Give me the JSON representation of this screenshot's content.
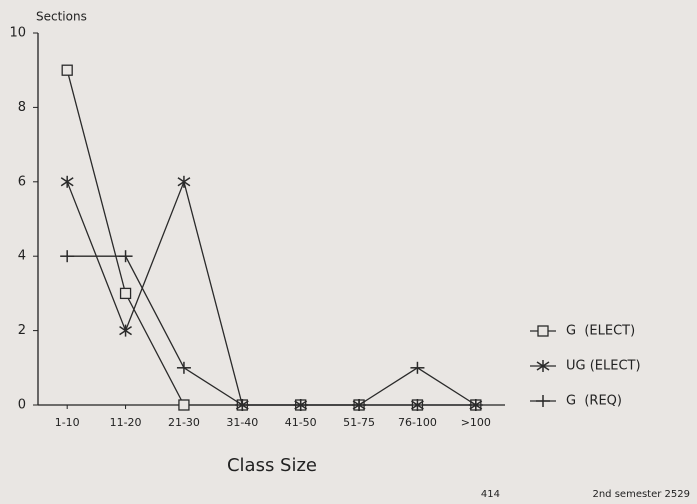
{
  "chart_data": {
    "type": "line",
    "y_label": "Sections",
    "x_label": "Class Size",
    "categories": [
      "1-10",
      "11-20",
      "21-30",
      "31-40",
      "41-50",
      "51-75",
      "76-100",
      ">100"
    ],
    "series": [
      {
        "name": "G  (ELECT)",
        "color": "#2a2a2a",
        "marker": "square",
        "values": [
          9,
          3,
          0,
          0,
          0,
          0,
          0,
          0
        ]
      },
      {
        "name": "UG (ELECT)",
        "color": "#2a2a2a",
        "marker": "asterisk",
        "values": [
          6,
          2,
          6,
          0,
          0,
          0,
          0,
          0
        ]
      },
      {
        "name": "G  (REQ)",
        "color": "#2a2a2a",
        "marker": "plus",
        "values": [
          4,
          4,
          1,
          0,
          0,
          0,
          1,
          0
        ]
      }
    ],
    "ylim": [
      0,
      10
    ],
    "yticks": [
      0,
      2,
      4,
      6,
      8,
      10
    ],
    "grid": false,
    "legend": "right"
  },
  "footer": {
    "page": "414",
    "note": "2nd semester 2529"
  }
}
